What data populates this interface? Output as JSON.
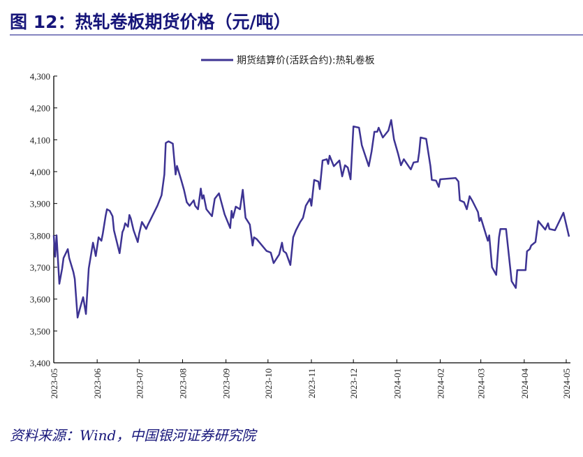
{
  "title": "图 12：热轧卷板期货价格（元/吨）",
  "source": "资料来源：Wind，中国银河证券研究院",
  "colors": {
    "line": "#3d3393",
    "title": "#17167a",
    "rule": "#8585c0"
  },
  "chart_data": {
    "type": "line",
    "title": "",
    "xlabel": "",
    "ylabel": "",
    "ylim": [
      3400,
      4300
    ],
    "xlim": [
      "2023-05-01",
      "2024-05-04"
    ],
    "yticks": [
      "3,400",
      "3,500",
      "3,600",
      "3,700",
      "3,800",
      "3,900",
      "4,000",
      "4,100",
      "4,200",
      "4,300"
    ],
    "ytick_values": [
      3400,
      3500,
      3600,
      3700,
      3800,
      3900,
      4000,
      4100,
      4200,
      4300
    ],
    "xticks": [
      "2023-05",
      "2023-06",
      "2023-07",
      "2023-08",
      "2023-09",
      "2023-10",
      "2023-11",
      "2023-12",
      "2024-01",
      "2024-02",
      "2024-03",
      "2024-04",
      "2024-05"
    ],
    "grid": false,
    "legend": "top-center",
    "series": [
      {
        "name": "期货结算价(活跃合约):热轧卷板",
        "points": [
          [
            "2023-05-01",
            3800
          ],
          [
            "2023-05-02",
            3733
          ],
          [
            "2023-05-03",
            3800
          ],
          [
            "2023-05-05",
            3648
          ],
          [
            "2023-05-07",
            3696
          ],
          [
            "2023-05-08",
            3729
          ],
          [
            "2023-05-11",
            3757
          ],
          [
            "2023-05-12",
            3729
          ],
          [
            "2023-05-15",
            3685
          ],
          [
            "2023-05-16",
            3663
          ],
          [
            "2023-05-18",
            3542
          ],
          [
            "2023-05-20",
            3575
          ],
          [
            "2023-05-22",
            3606
          ],
          [
            "2023-05-24",
            3553
          ],
          [
            "2023-05-26",
            3696
          ],
          [
            "2023-05-29",
            3777
          ],
          [
            "2023-05-31",
            3735
          ],
          [
            "2023-06-02",
            3794
          ],
          [
            "2023-06-04",
            3783
          ],
          [
            "2023-06-05",
            3805
          ],
          [
            "2023-06-07",
            3860
          ],
          [
            "2023-06-08",
            3882
          ],
          [
            "2023-06-10",
            3877
          ],
          [
            "2023-06-12",
            3860
          ],
          [
            "2023-06-13",
            3816
          ],
          [
            "2023-06-17",
            3744
          ],
          [
            "2023-06-19",
            3810
          ],
          [
            "2023-06-20",
            3820
          ],
          [
            "2023-06-21",
            3838
          ],
          [
            "2023-06-23",
            3827
          ],
          [
            "2023-06-24",
            3864
          ],
          [
            "2023-06-25",
            3853
          ],
          [
            "2023-06-27",
            3816
          ],
          [
            "2023-06-30",
            3779
          ],
          [
            "2023-07-01",
            3805
          ],
          [
            "2023-07-03",
            3842
          ],
          [
            "2023-07-06",
            3820
          ],
          [
            "2023-07-07",
            3831
          ],
          [
            "2023-07-14",
            3893
          ],
          [
            "2023-07-17",
            3926
          ],
          [
            "2023-07-19",
            3991
          ],
          [
            "2023-07-20",
            4090
          ],
          [
            "2023-07-22",
            4095
          ],
          [
            "2023-07-25",
            4088
          ],
          [
            "2023-07-27",
            3991
          ],
          [
            "2023-07-28",
            4018
          ],
          [
            "2023-07-31",
            3974
          ],
          [
            "2023-08-02",
            3943
          ],
          [
            "2023-08-04",
            3904
          ],
          [
            "2023-08-06",
            3893
          ],
          [
            "2023-08-09",
            3910
          ],
          [
            "2023-08-10",
            3893
          ],
          [
            "2023-08-12",
            3882
          ],
          [
            "2023-08-14",
            3947
          ],
          [
            "2023-08-15",
            3915
          ],
          [
            "2023-08-16",
            3926
          ],
          [
            "2023-08-18",
            3882
          ],
          [
            "2023-08-22",
            3860
          ],
          [
            "2023-08-24",
            3915
          ],
          [
            "2023-08-27",
            3932
          ],
          [
            "2023-08-31",
            3866
          ],
          [
            "2023-09-04",
            3823
          ],
          [
            "2023-09-05",
            3877
          ],
          [
            "2023-09-06",
            3855
          ],
          [
            "2023-09-08",
            3890
          ],
          [
            "2023-09-11",
            3882
          ],
          [
            "2023-09-13",
            3943
          ],
          [
            "2023-09-15",
            3855
          ],
          [
            "2023-09-18",
            3834
          ],
          [
            "2023-09-20",
            3768
          ],
          [
            "2023-09-21",
            3794
          ],
          [
            "2023-09-23",
            3788
          ],
          [
            "2023-09-30",
            3751
          ],
          [
            "2023-10-03",
            3746
          ],
          [
            "2023-10-05",
            3713
          ],
          [
            "2023-10-09",
            3740
          ],
          [
            "2023-10-11",
            3777
          ],
          [
            "2023-10-12",
            3751
          ],
          [
            "2023-10-14",
            3744
          ],
          [
            "2023-10-17",
            3707
          ],
          [
            "2023-10-19",
            3794
          ],
          [
            "2023-10-21",
            3816
          ],
          [
            "2023-10-24",
            3842
          ],
          [
            "2023-10-26",
            3855
          ],
          [
            "2023-10-28",
            3893
          ],
          [
            "2023-10-31",
            3915
          ],
          [
            "2023-11-01",
            3893
          ],
          [
            "2023-11-03",
            3974
          ],
          [
            "2023-11-06",
            3969
          ],
          [
            "2023-11-07",
            3945
          ],
          [
            "2023-11-09",
            4035
          ],
          [
            "2023-11-12",
            4039
          ],
          [
            "2023-11-13",
            4024
          ],
          [
            "2023-11-14",
            4050
          ],
          [
            "2023-11-17",
            4017
          ],
          [
            "2023-11-21",
            4035
          ],
          [
            "2023-11-23",
            3985
          ],
          [
            "2023-11-25",
            4020
          ],
          [
            "2023-11-27",
            4013
          ],
          [
            "2023-11-29",
            3976
          ],
          [
            "2023-12-01",
            4142
          ],
          [
            "2023-12-05",
            4138
          ],
          [
            "2023-12-07",
            4083
          ],
          [
            "2023-12-12",
            4017
          ],
          [
            "2023-12-14",
            4063
          ],
          [
            "2023-12-16",
            4125
          ],
          [
            "2023-12-18",
            4125
          ],
          [
            "2023-12-19",
            4138
          ],
          [
            "2023-12-22",
            4107
          ],
          [
            "2023-12-26",
            4129
          ],
          [
            "2023-12-28",
            4162
          ],
          [
            "2023-12-30",
            4101
          ],
          [
            "2024-01-02",
            4055
          ],
          [
            "2024-01-04",
            4020
          ],
          [
            "2024-01-06",
            4039
          ],
          [
            "2024-01-10",
            4013
          ],
          [
            "2024-01-11",
            4007
          ],
          [
            "2024-01-13",
            4029
          ],
          [
            "2024-01-16",
            4031
          ],
          [
            "2024-01-17",
            4061
          ],
          [
            "2024-01-18",
            4107
          ],
          [
            "2024-01-22",
            4103
          ],
          [
            "2024-01-25",
            4017
          ],
          [
            "2024-01-26",
            3974
          ],
          [
            "2024-01-29",
            3972
          ],
          [
            "2024-01-31",
            3952
          ],
          [
            "2024-02-01",
            3976
          ],
          [
            "2024-02-12",
            3980
          ],
          [
            "2024-02-14",
            3969
          ],
          [
            "2024-02-15",
            3910
          ],
          [
            "2024-02-18",
            3904
          ],
          [
            "2024-02-20",
            3882
          ],
          [
            "2024-02-22",
            3923
          ],
          [
            "2024-02-24",
            3908
          ],
          [
            "2024-02-28",
            3873
          ],
          [
            "2024-02-29",
            3845
          ],
          [
            "2024-03-01",
            3855
          ],
          [
            "2024-03-06",
            3783
          ],
          [
            "2024-03-07",
            3800
          ],
          [
            "2024-03-09",
            3700
          ],
          [
            "2024-03-12",
            3676
          ],
          [
            "2024-03-14",
            3794
          ],
          [
            "2024-03-15",
            3820
          ],
          [
            "2024-03-19",
            3820
          ],
          [
            "2024-03-23",
            3656
          ],
          [
            "2024-03-26",
            3635
          ],
          [
            "2024-03-27",
            3691
          ],
          [
            "2024-03-31",
            3691
          ],
          [
            "2024-04-02",
            3691
          ],
          [
            "2024-04-03",
            3750
          ],
          [
            "2024-04-05",
            3757
          ],
          [
            "2024-04-06",
            3768
          ],
          [
            "2024-04-09",
            3779
          ],
          [
            "2024-04-11",
            3845
          ],
          [
            "2024-04-16",
            3818
          ],
          [
            "2024-04-18",
            3838
          ],
          [
            "2024-04-19",
            3820
          ],
          [
            "2024-04-23",
            3816
          ],
          [
            "2024-04-29",
            3871
          ],
          [
            "2024-05-03",
            3796
          ]
        ]
      }
    ]
  }
}
